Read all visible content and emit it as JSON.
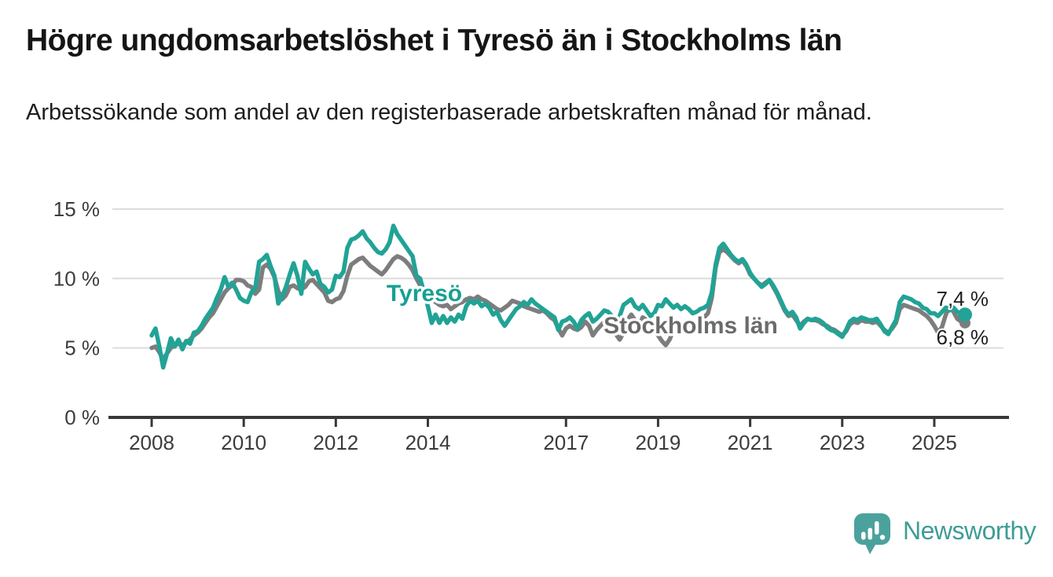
{
  "header": {
    "title": "Högre ungdomsarbetslöshet i Tyresö än i Stockholms län",
    "subtitle": "Arbetssökande som andel av den registerbaserade arbetskraften månad för månad."
  },
  "chart_data": {
    "type": "line",
    "unit": "percent",
    "frequency": "monthly",
    "x_start": "2008-01",
    "x_end": "2025-09",
    "ylim": [
      0,
      15
    ],
    "grid": "horizontal",
    "legend_position": "inline-labels",
    "y_axis": {
      "ticks": [
        {
          "label": "15 %",
          "value": 15
        },
        {
          "label": "10 %",
          "value": 10
        },
        {
          "label": "5 %",
          "value": 5
        },
        {
          "label": "0 %",
          "value": 0
        }
      ]
    },
    "x_axis": {
      "ticks": [
        {
          "label": "2008",
          "year": 2008
        },
        {
          "label": "2010",
          "year": 2010
        },
        {
          "label": "2012",
          "year": 2012
        },
        {
          "label": "2014",
          "year": 2014
        },
        {
          "label": "2017",
          "year": 2017
        },
        {
          "label": "2019",
          "year": 2019
        },
        {
          "label": "2021",
          "year": 2021
        },
        {
          "label": "2023",
          "year": 2023
        },
        {
          "label": "2025",
          "year": 2025
        }
      ]
    },
    "series": [
      {
        "id": "stockholms-lan",
        "name": "Stockholms län",
        "color": "#7D7D7D",
        "label_color": "#6B6B6B",
        "end_label": "6,8 %",
        "last_value": 6.8,
        "values": [
          5.0,
          5.1,
          4.7,
          4.2,
          4.6,
          5.0,
          5.2,
          5.3,
          5.2,
          5.4,
          5.6,
          5.9,
          6.1,
          6.4,
          6.8,
          7.2,
          7.5,
          8.0,
          8.5,
          9.0,
          9.3,
          9.5,
          9.9,
          9.9,
          9.8,
          9.5,
          9.4,
          8.9,
          9.2,
          10.8,
          11.0,
          10.7,
          10.1,
          9.1,
          8.5,
          8.8,
          9.4,
          9.5,
          9.3,
          9.2,
          9.4,
          9.8,
          9.9,
          9.6,
          9.3,
          9.0,
          8.4,
          8.3,
          8.5,
          8.6,
          9.1,
          10.2,
          11.0,
          11.2,
          11.4,
          11.5,
          11.2,
          10.9,
          10.7,
          10.5,
          10.3,
          10.6,
          11.0,
          11.4,
          11.6,
          11.5,
          11.3,
          11.0,
          10.6,
          10.0,
          9.5,
          9.1,
          8.8,
          8.5,
          8.3,
          8.1,
          8.0,
          8.1,
          7.8,
          8.0,
          8.2,
          8.3,
          8.5,
          8.6,
          8.5,
          8.7,
          8.5,
          8.4,
          8.2,
          8.0,
          7.8,
          7.7,
          7.9,
          8.1,
          8.4,
          8.3,
          8.2,
          8.0,
          7.9,
          7.8,
          7.7,
          7.6,
          7.7,
          7.5,
          7.2,
          7.0,
          6.4,
          5.9,
          6.4,
          6.6,
          6.4,
          6.3,
          6.5,
          6.9,
          6.6,
          5.9,
          6.3,
          6.6,
          6.9,
          6.7,
          6.4,
          6.0,
          5.6,
          6.1,
          7.0,
          7.4,
          7.0,
          6.6,
          7.2,
          7.0,
          6.5,
          6.2,
          5.9,
          5.5,
          5.2,
          5.6,
          6.3,
          6.9,
          6.6,
          6.9,
          6.7,
          6.6,
          6.8,
          7.0,
          7.2,
          7.5,
          8.6,
          10.8,
          11.9,
          12.1,
          11.9,
          11.6,
          11.3,
          11.1,
          11.3,
          10.9,
          10.3,
          10.0,
          9.7,
          9.5,
          9.7,
          9.9,
          9.4,
          8.9,
          8.3,
          7.7,
          7.3,
          7.4,
          7.0,
          6.6,
          6.9,
          7.1,
          7.0,
          7.0,
          6.9,
          6.7,
          6.6,
          6.4,
          6.3,
          6.1,
          5.9,
          6.2,
          6.7,
          6.9,
          6.8,
          7.0,
          6.9,
          6.9,
          6.8,
          6.9,
          6.6,
          6.3,
          6.1,
          6.4,
          6.8,
          7.8,
          8.1,
          8.0,
          7.9,
          7.8,
          7.7,
          7.5,
          7.3,
          7.0,
          6.6,
          6.1,
          6.5,
          7.4,
          8.0,
          7.6,
          7.1,
          6.9,
          6.8
        ]
      },
      {
        "id": "tyreso",
        "name": "Tyresö",
        "color": "#21A396",
        "label_color": "#17A093",
        "end_label": "7,4 %",
        "last_value": 7.4,
        "values": [
          5.9,
          6.4,
          5.1,
          3.6,
          4.6,
          5.7,
          5.1,
          5.6,
          4.9,
          5.5,
          5.3,
          6.1,
          6.2,
          6.6,
          7.1,
          7.5,
          7.9,
          8.6,
          9.2,
          10.1,
          9.4,
          9.7,
          9.2,
          8.6,
          8.4,
          8.3,
          9.0,
          9.3,
          11.2,
          11.4,
          11.7,
          10.9,
          10.2,
          8.2,
          8.7,
          9.4,
          10.3,
          11.1,
          10.2,
          8.9,
          11.2,
          10.7,
          10.3,
          10.5,
          9.6,
          9.4,
          9.0,
          9.2,
          10.2,
          10.1,
          10.5,
          12.2,
          12.8,
          12.9,
          13.1,
          13.4,
          12.9,
          12.6,
          12.2,
          11.9,
          11.8,
          12.1,
          12.6,
          13.8,
          13.2,
          12.8,
          12.4,
          12.0,
          11.6,
          10.2,
          10.0,
          9.0,
          8.0,
          6.8,
          7.4,
          6.8,
          7.3,
          6.8,
          7.2,
          6.9,
          7.4,
          7.1,
          8.0,
          8.4,
          8.2,
          8.4,
          8.0,
          8.2,
          7.9,
          7.4,
          7.6,
          7.0,
          6.6,
          7.0,
          7.4,
          7.8,
          8.0,
          8.3,
          8.1,
          8.5,
          8.2,
          8.0,
          7.8,
          7.6,
          7.4,
          7.2,
          6.3,
          6.9,
          7.0,
          7.2,
          6.9,
          6.4,
          7.0,
          7.3,
          7.5,
          6.9,
          7.1,
          7.4,
          7.7,
          7.6,
          7.3,
          6.9,
          7.3,
          8.1,
          8.3,
          8.5,
          8.0,
          7.8,
          8.1,
          7.7,
          7.3,
          7.5,
          8.1,
          8.0,
          8.5,
          8.2,
          7.9,
          8.1,
          7.8,
          8.0,
          7.8,
          7.5,
          7.6,
          7.8,
          7.9,
          8.1,
          9.0,
          11.0,
          12.2,
          12.5,
          12.1,
          11.7,
          11.4,
          11.2,
          11.4,
          11.0,
          10.4,
          10.0,
          9.7,
          9.4,
          9.6,
          9.9,
          9.5,
          9.0,
          8.4,
          7.8,
          7.4,
          7.6,
          7.2,
          6.4,
          6.8,
          7.1,
          7.0,
          7.1,
          7.0,
          6.8,
          6.5,
          6.3,
          6.2,
          6.0,
          5.8,
          6.3,
          6.9,
          7.1,
          7.0,
          7.2,
          7.1,
          7.0,
          7.0,
          7.1,
          6.7,
          6.2,
          6.0,
          6.5,
          7.0,
          8.3,
          8.7,
          8.6,
          8.5,
          8.3,
          8.2,
          7.9,
          7.8,
          7.5,
          7.5,
          7.3,
          7.6,
          7.9,
          7.7,
          7.9,
          7.6,
          7.5,
          7.4
        ]
      }
    ]
  },
  "branding": {
    "name": "Newsworthy",
    "icon": "speech-bubble-bar-chart",
    "color": "#3F9C96",
    "bubble_color": "#4BA29C"
  }
}
